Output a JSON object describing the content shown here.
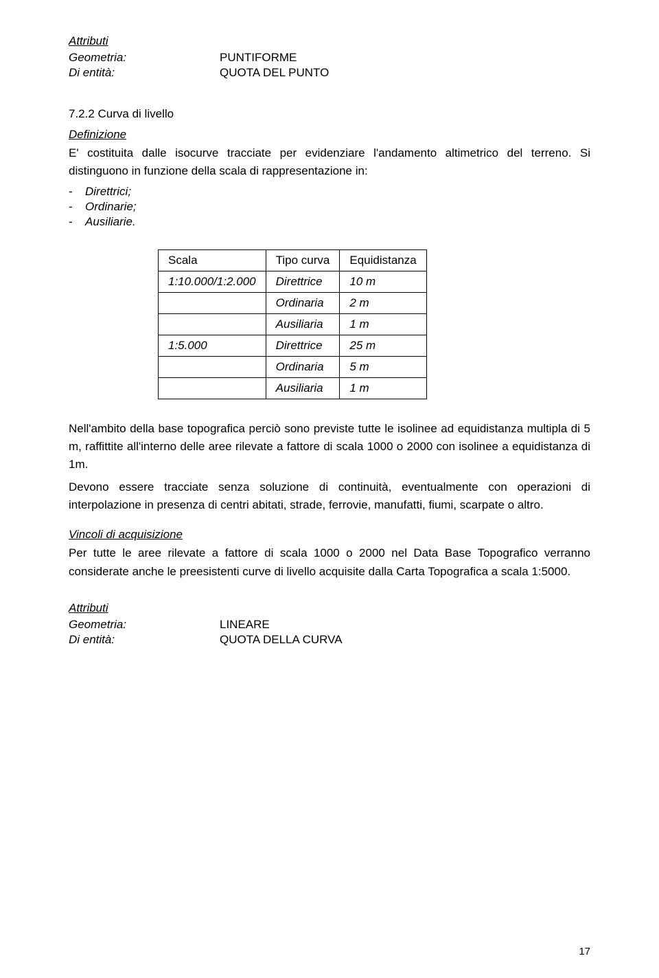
{
  "top_attributes": {
    "heading": "Attributi",
    "rows": [
      {
        "label": "Geometria:",
        "value": "PUNTIFORME"
      },
      {
        "label": "Di entità:",
        "value": "QUOTA DEL PUNTO"
      }
    ]
  },
  "section_7_2_2": {
    "title": "7.2.2 Curva di livello",
    "definizione_label": "Definizione",
    "para1": "E' costituita dalle isocurve tracciate per evidenziare l'andamento altimetrico del terreno.  Si distinguono in funzione della scala di rappresentazione in:",
    "list": [
      "Direttrici;",
      "Ordinarie;",
      "Ausiliarie."
    ],
    "table": {
      "columns": [
        "Scala",
        "Tipo curva",
        "Equidistanza"
      ],
      "rows": [
        [
          "1:10.000/1:2.000",
          "Direttrice",
          "10 m"
        ],
        [
          "",
          "Ordinaria",
          "2 m"
        ],
        [
          "",
          "Ausiliaria",
          "1 m"
        ],
        [
          "1:5.000",
          "Direttrice",
          "25 m"
        ],
        [
          "",
          "Ordinaria",
          "5 m"
        ],
        [
          "",
          "Ausiliaria",
          "1 m"
        ]
      ],
      "col_widths": [
        "170px",
        "140px",
        "140px"
      ],
      "border_color": "#000000"
    },
    "para2": "Nell'ambito della base topografica perciò sono previste tutte le isolinee ad equidistanza multipla di 5 m, raffittite all'interno delle aree rilevate a fattore di scala 1000 o 2000 con isolinee a equidistanza di 1m.",
    "para3": "Devono essere tracciate senza soluzione di continuità, eventualmente con operazioni di interpolazione in presenza di centri abitati, strade, ferrovie, manufatti, fiumi, scarpate o altro.",
    "vincoli_label": "Vincoli di acquisizione",
    "para4": "Per tutte le aree rilevate a fattore di scala 1000 o 2000 nel Data Base Topografico verranno considerate anche le preesistenti curve di livello acquisite dalla Carta Topografica a scala 1:5000."
  },
  "bottom_attributes": {
    "heading": "Attributi",
    "rows": [
      {
        "label": "Geometria:",
        "value": "LINEARE"
      },
      {
        "label": "Di entità:",
        "value": "QUOTA DELLA CURVA"
      }
    ]
  },
  "page_number": "17"
}
